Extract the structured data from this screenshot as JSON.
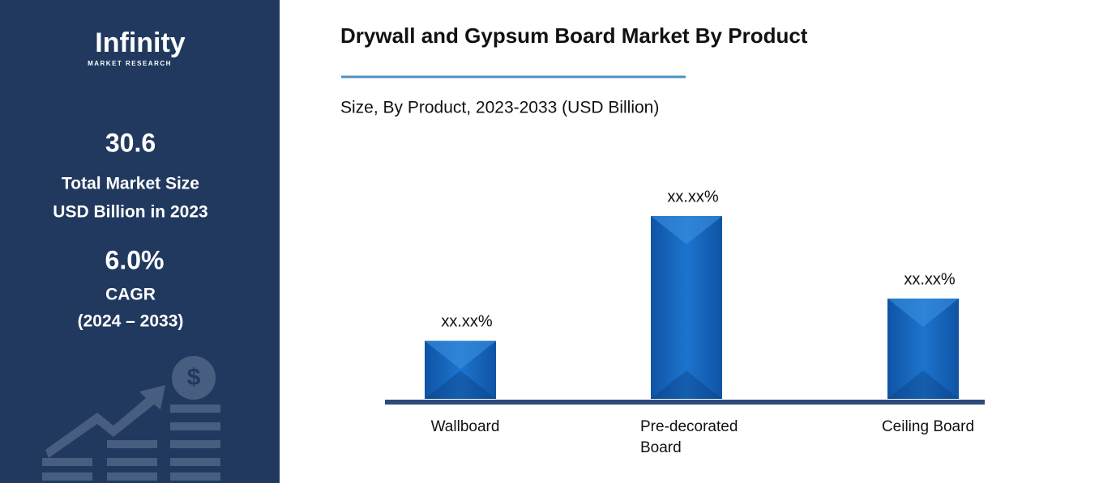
{
  "panel": {
    "logo": "Infinity",
    "logo_sub": "MARKET RESEARCH",
    "market_size": "30.6",
    "market_size_label_1": "Total Market Size",
    "market_size_label_2": "USD Billion in 2023",
    "cagr": "6.0%",
    "cagr_label": "CAGR",
    "cagr_period": "(2024 – 2033)"
  },
  "chart_data": {
    "type": "bar",
    "title": "Drywall and Gypsum Board Market By Product",
    "subtitle": "Size, By Product, 2023-2033 (USD Billion)",
    "categories": [
      "Wallboard",
      "Pre-decorated Board",
      "Ceiling Board"
    ],
    "values": [
      5.2,
      16.4,
      9.0
    ],
    "annotations": [
      "xx.xx%",
      "xx.xx%",
      "xx.xx%"
    ],
    "color": "#1565c0",
    "ylim": [
      0,
      18
    ]
  }
}
